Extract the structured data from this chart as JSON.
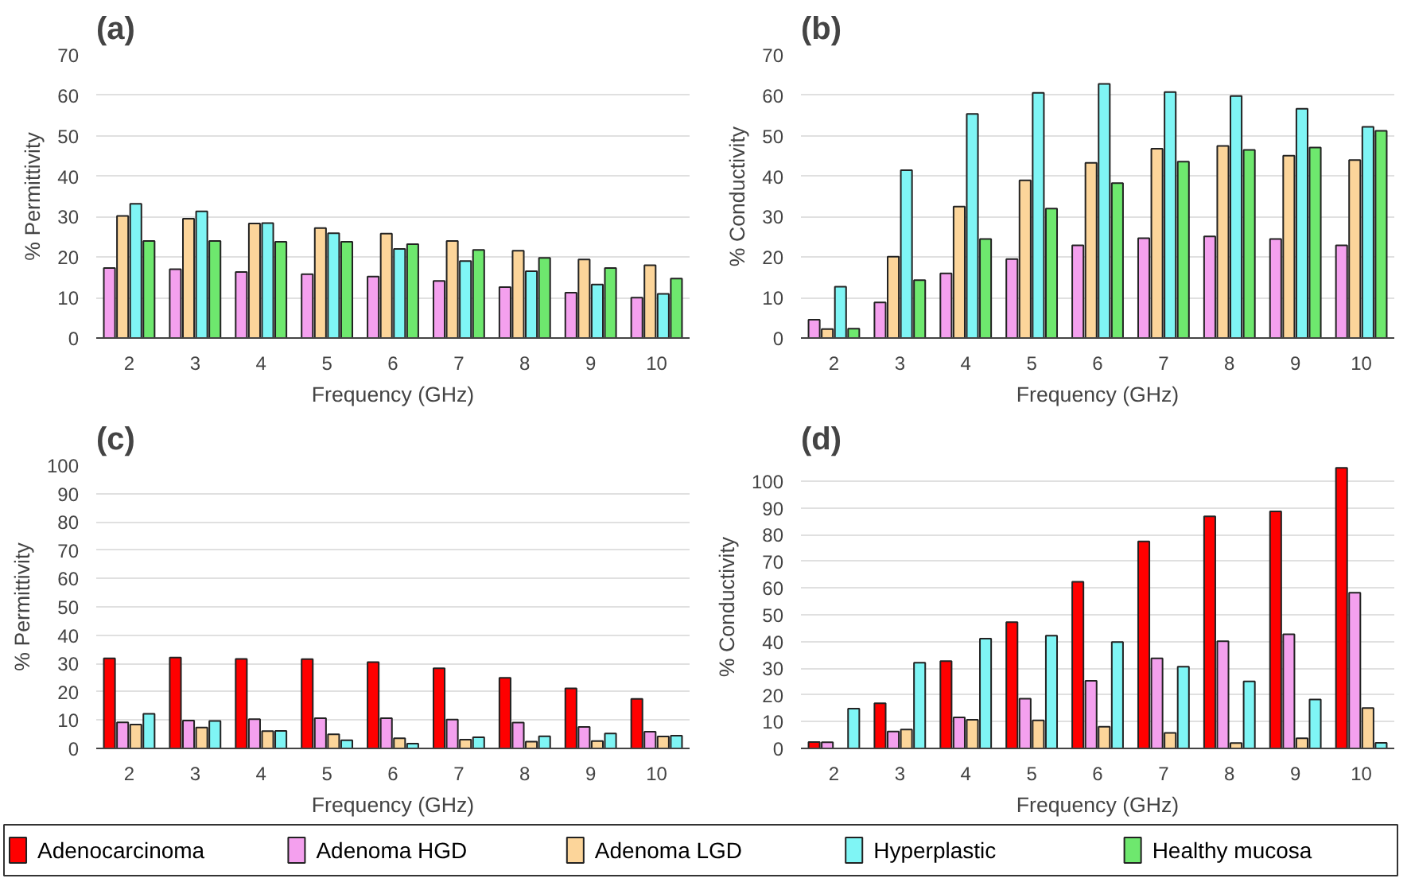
{
  "chart_data": [
    {
      "type": "bar",
      "title": "(a)",
      "xlabel": "Frequency (GHz)",
      "ylabel": "% Permittivity",
      "categories": [
        "2",
        "3",
        "4",
        "5",
        "6",
        "7",
        "8",
        "9",
        "10"
      ],
      "ylim": [
        0,
        70
      ],
      "yticks": [
        0,
        10,
        20,
        30,
        40,
        50,
        60,
        70
      ],
      "grid": "y",
      "legend": "bottom",
      "series": [
        {
          "name": "Adenoma HGD",
          "color": "#f4a0ee",
          "values": [
            17.3,
            17,
            16.3,
            15.8,
            15.2,
            14.1,
            12.6,
            11.2,
            10
          ]
        },
        {
          "name": "Adenoma LGD",
          "color": "#fcd59a",
          "values": [
            30.2,
            29.5,
            28.3,
            27.2,
            25.8,
            24,
            21.6,
            19.4,
            18
          ]
        },
        {
          "name": "Hyperplastic",
          "color": "#7ff5f5",
          "values": [
            33.2,
            31.3,
            28.4,
            25.9,
            22,
            19,
            16.5,
            13.2,
            10.9
          ]
        },
        {
          "name": "Healthy mucosa",
          "color": "#6ee86e",
          "values": [
            24,
            24,
            23.8,
            23.8,
            23.2,
            21.8,
            19.8,
            17.3,
            14.7
          ]
        }
      ]
    },
    {
      "type": "bar",
      "title": "(b)",
      "xlabel": "Frequency (GHz)",
      "ylabel": "% Conductivity",
      "categories": [
        "2",
        "3",
        "4",
        "5",
        "6",
        "7",
        "8",
        "9",
        "10"
      ],
      "ylim": [
        0,
        70
      ],
      "yticks": [
        0,
        10,
        20,
        30,
        40,
        50,
        60,
        70
      ],
      "grid": "y",
      "legend": "bottom",
      "series": [
        {
          "name": "Adenoma HGD",
          "color": "#f4a0ee",
          "values": [
            4.5,
            8.8,
            16,
            19.5,
            22.9,
            24.7,
            25.1,
            24.5,
            22.9
          ]
        },
        {
          "name": "Adenoma LGD",
          "color": "#fcd59a",
          "values": [
            2.2,
            20.1,
            32.5,
            39,
            43.3,
            46.8,
            47.5,
            45.1,
            44
          ]
        },
        {
          "name": "Hyperplastic",
          "color": "#7ff5f5",
          "values": [
            12.7,
            41.5,
            55.4,
            60.6,
            62.8,
            60.8,
            59.8,
            56.7,
            52.2
          ]
        },
        {
          "name": "Healthy mucosa",
          "color": "#6ee86e",
          "values": [
            2.3,
            14.3,
            24.5,
            32,
            38.3,
            43.6,
            46.5,
            47.1,
            51.2
          ]
        }
      ]
    },
    {
      "type": "bar",
      "title": "(c)",
      "xlabel": "Frequency (GHz)",
      "ylabel": "% Permittivity",
      "categories": [
        "2",
        "3",
        "4",
        "5",
        "6",
        "7",
        "8",
        "9",
        "10"
      ],
      "ylim": [
        0,
        100
      ],
      "yticks": [
        0,
        10,
        20,
        30,
        40,
        50,
        60,
        70,
        80,
        90,
        100
      ],
      "grid": "y",
      "legend": "bottom",
      "series": [
        {
          "name": "Adenocarcinoma",
          "color": "#ff0000",
          "values": [
            31.8,
            32.1,
            31.6,
            31.5,
            30.5,
            28.3,
            24.9,
            21.2,
            17.5
          ]
        },
        {
          "name": "Adenoma HGD",
          "color": "#f4a0ee",
          "values": [
            9.2,
            9.8,
            10.3,
            10.7,
            10.7,
            10.2,
            9.1,
            7.6,
            5.9
          ]
        },
        {
          "name": "Adenoma LGD",
          "color": "#fcd59a",
          "values": [
            8.4,
            7.4,
            6.1,
            5,
            3.6,
            3.1,
            2.4,
            2.6,
            4.2
          ]
        },
        {
          "name": "Hyperplastic",
          "color": "#7ff5f5",
          "values": [
            12.2,
            9.7,
            6.2,
            2.9,
            1.7,
            3.9,
            4.3,
            5.3,
            4.5
          ]
        }
      ]
    },
    {
      "type": "bar",
      "title": "(d)",
      "xlabel": "Frequency (GHz)",
      "ylabel": "% Conductivity",
      "categories": [
        "2",
        "3",
        "4",
        "5",
        "6",
        "7",
        "8",
        "9",
        "10"
      ],
      "ylim": [
        0,
        106
      ],
      "yticks": [
        0,
        10,
        20,
        30,
        40,
        50,
        60,
        70,
        80,
        90,
        100
      ],
      "grid": "y",
      "legend": "bottom",
      "series": [
        {
          "name": "Adenocarcinoma",
          "color": "#ff0000",
          "values": [
            2.4,
            16.9,
            32.7,
            47.3,
            62.4,
            77.5,
            86.9,
            88.7,
            105
          ]
        },
        {
          "name": "Adenoma HGD",
          "color": "#f4a0ee",
          "values": [
            2.3,
            6.3,
            11.6,
            18.6,
            25.3,
            33.7,
            40.1,
            42.7,
            58.3
          ]
        },
        {
          "name": "Adenoma LGD",
          "color": "#fcd59a",
          "values": [
            null,
            7.1,
            10.7,
            10.5,
            8.1,
            5.8,
            2,
            3.8,
            15.1
          ]
        },
        {
          "name": "Hyperplastic",
          "color": "#7ff5f5",
          "values": [
            14.9,
            32.1,
            41.1,
            42.2,
            39.8,
            30.6,
            25.1,
            18.3,
            2.1
          ]
        }
      ]
    }
  ]
}
